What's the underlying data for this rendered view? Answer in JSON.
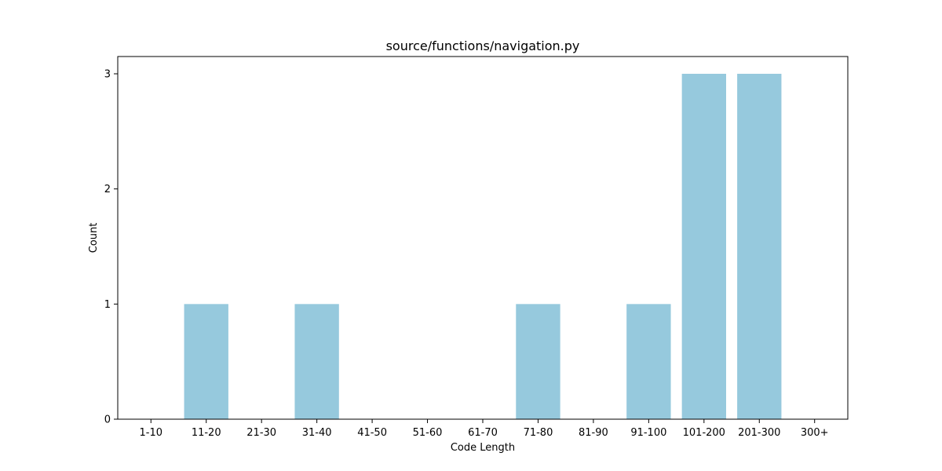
{
  "chart_data": {
    "type": "bar",
    "title": "source/functions/navigation.py",
    "xlabel": "Code Length",
    "ylabel": "Count",
    "categories": [
      "1-10",
      "11-20",
      "21-30",
      "31-40",
      "41-50",
      "51-60",
      "61-70",
      "71-80",
      "81-90",
      "91-100",
      "101-200",
      "201-300",
      "300+"
    ],
    "values": [
      0,
      1,
      0,
      1,
      0,
      0,
      0,
      1,
      0,
      1,
      3,
      3,
      0
    ],
    "yticks": [
      0,
      1,
      2,
      3
    ],
    "ylim": [
      0,
      3.15
    ],
    "grid": false,
    "bar_color": "#96c9dd"
  }
}
